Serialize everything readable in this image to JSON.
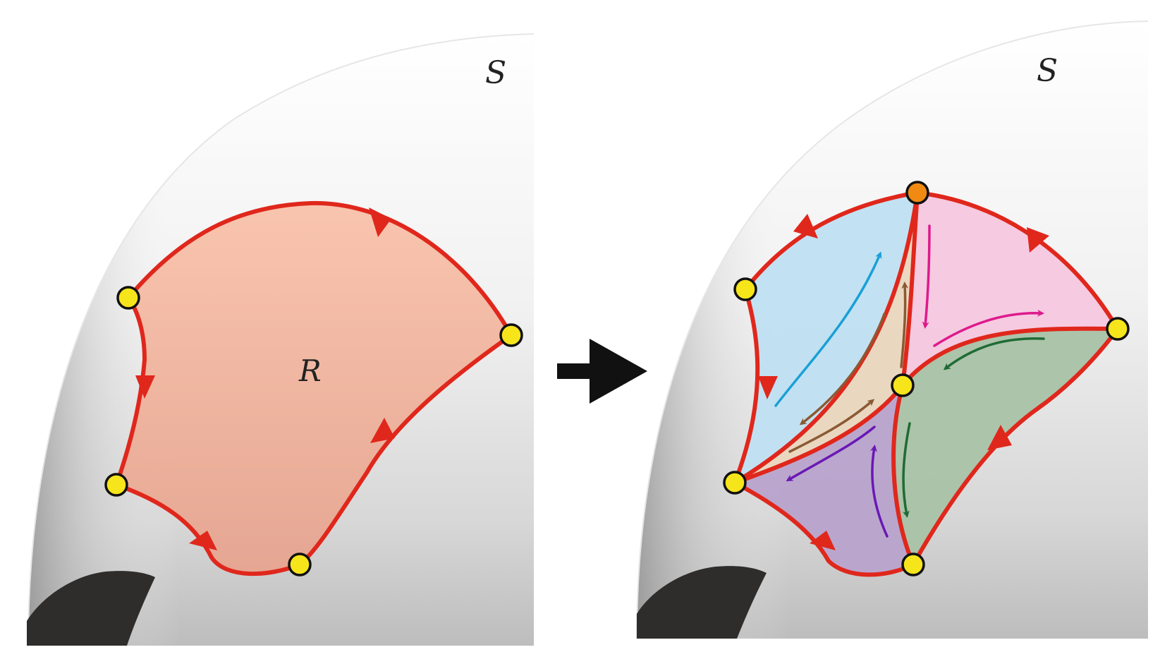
{
  "colors": {
    "background": "#ffffff",
    "surface_light": "#f4f4f4",
    "surface_mid": "#d9d9d9",
    "surface_dark": "#9a9a9a",
    "hole": "#2f2d2b",
    "boundary": "#e0271c",
    "vertex": "#f7e51b",
    "vertex_special": "#f08a12",
    "vertex_outline": "#111111",
    "region_R": "#f7b9a0",
    "region_blue": "#bfe0f2",
    "region_pink": "#f6c7df",
    "region_tan": "#ead6be",
    "region_green": "#a9c2a6",
    "region_purple": "#b8a3cc",
    "arrow_blue": "#1aa0d6",
    "arrow_magenta": "#de1a8c",
    "arrow_brown": "#8a5a33",
    "arrow_green": "#1f6b35",
    "arrow_purple": "#6a18b5",
    "transition_arrow": "#111111"
  },
  "left_panel": {
    "surface_label": "S",
    "region_label": "R"
  },
  "right_panel": {
    "surface_label": "S"
  },
  "icons": {
    "transition": "right-arrow-icon"
  }
}
